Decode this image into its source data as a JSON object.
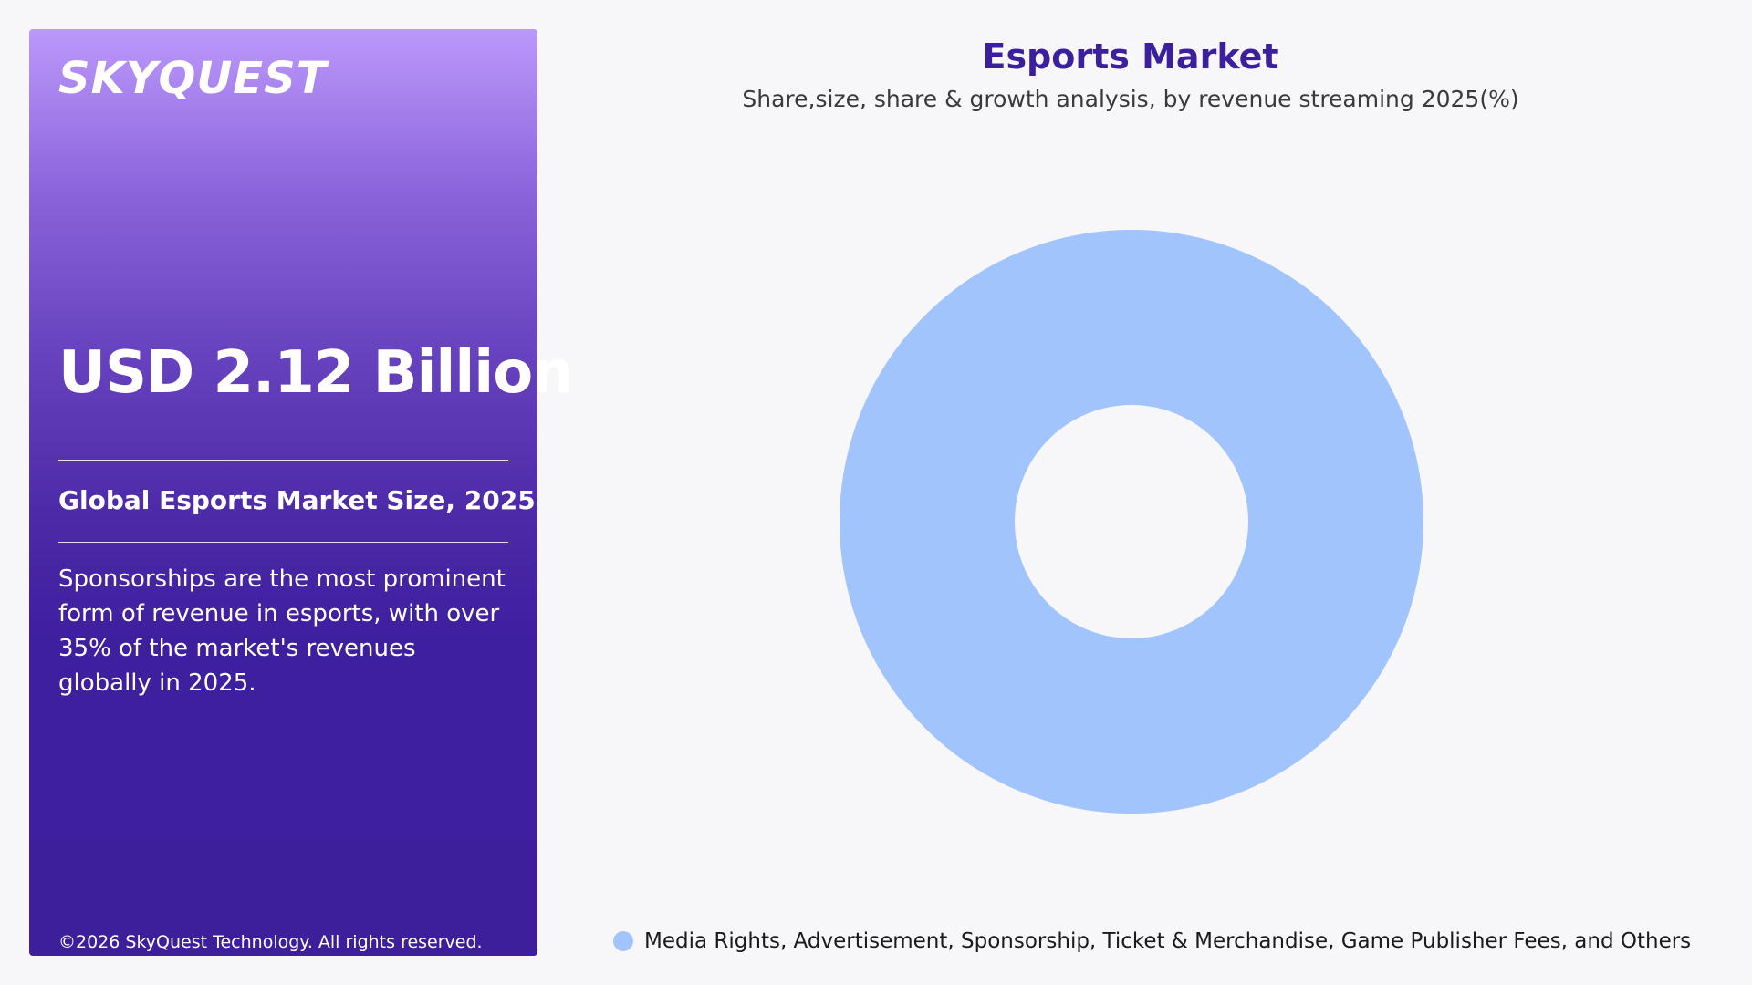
{
  "side_panel": {
    "logo_text": "SKYQUEST",
    "market_size": "USD 2.12 Billion",
    "size_label": "Global Esports Market Size, 2025",
    "description": "Sponsorships are the most prominent form of revenue in esports, with over 35% of the market's revenues globally in 2025.",
    "copyright": "©2026 SkyQuest Technology. All rights reserved."
  },
  "chart_data": {
    "type": "pie",
    "title": "Esports Market",
    "subtitle": "Share,size, share & growth analysis, by revenue streaming 2025(%)",
    "donut": true,
    "legend_position": "bottom",
    "series": [
      {
        "name": "Media Rights, Advertisement, Sponsorship, Ticket & Merchandise, Game Publisher Fees, and Others",
        "value": 100,
        "color": "#a1c4fd"
      }
    ]
  },
  "colors": {
    "title": "#3c1f9c",
    "panel_top": "#bb98fb",
    "panel_bottom": "#3d1f9c",
    "background": "#f7f7fa"
  }
}
